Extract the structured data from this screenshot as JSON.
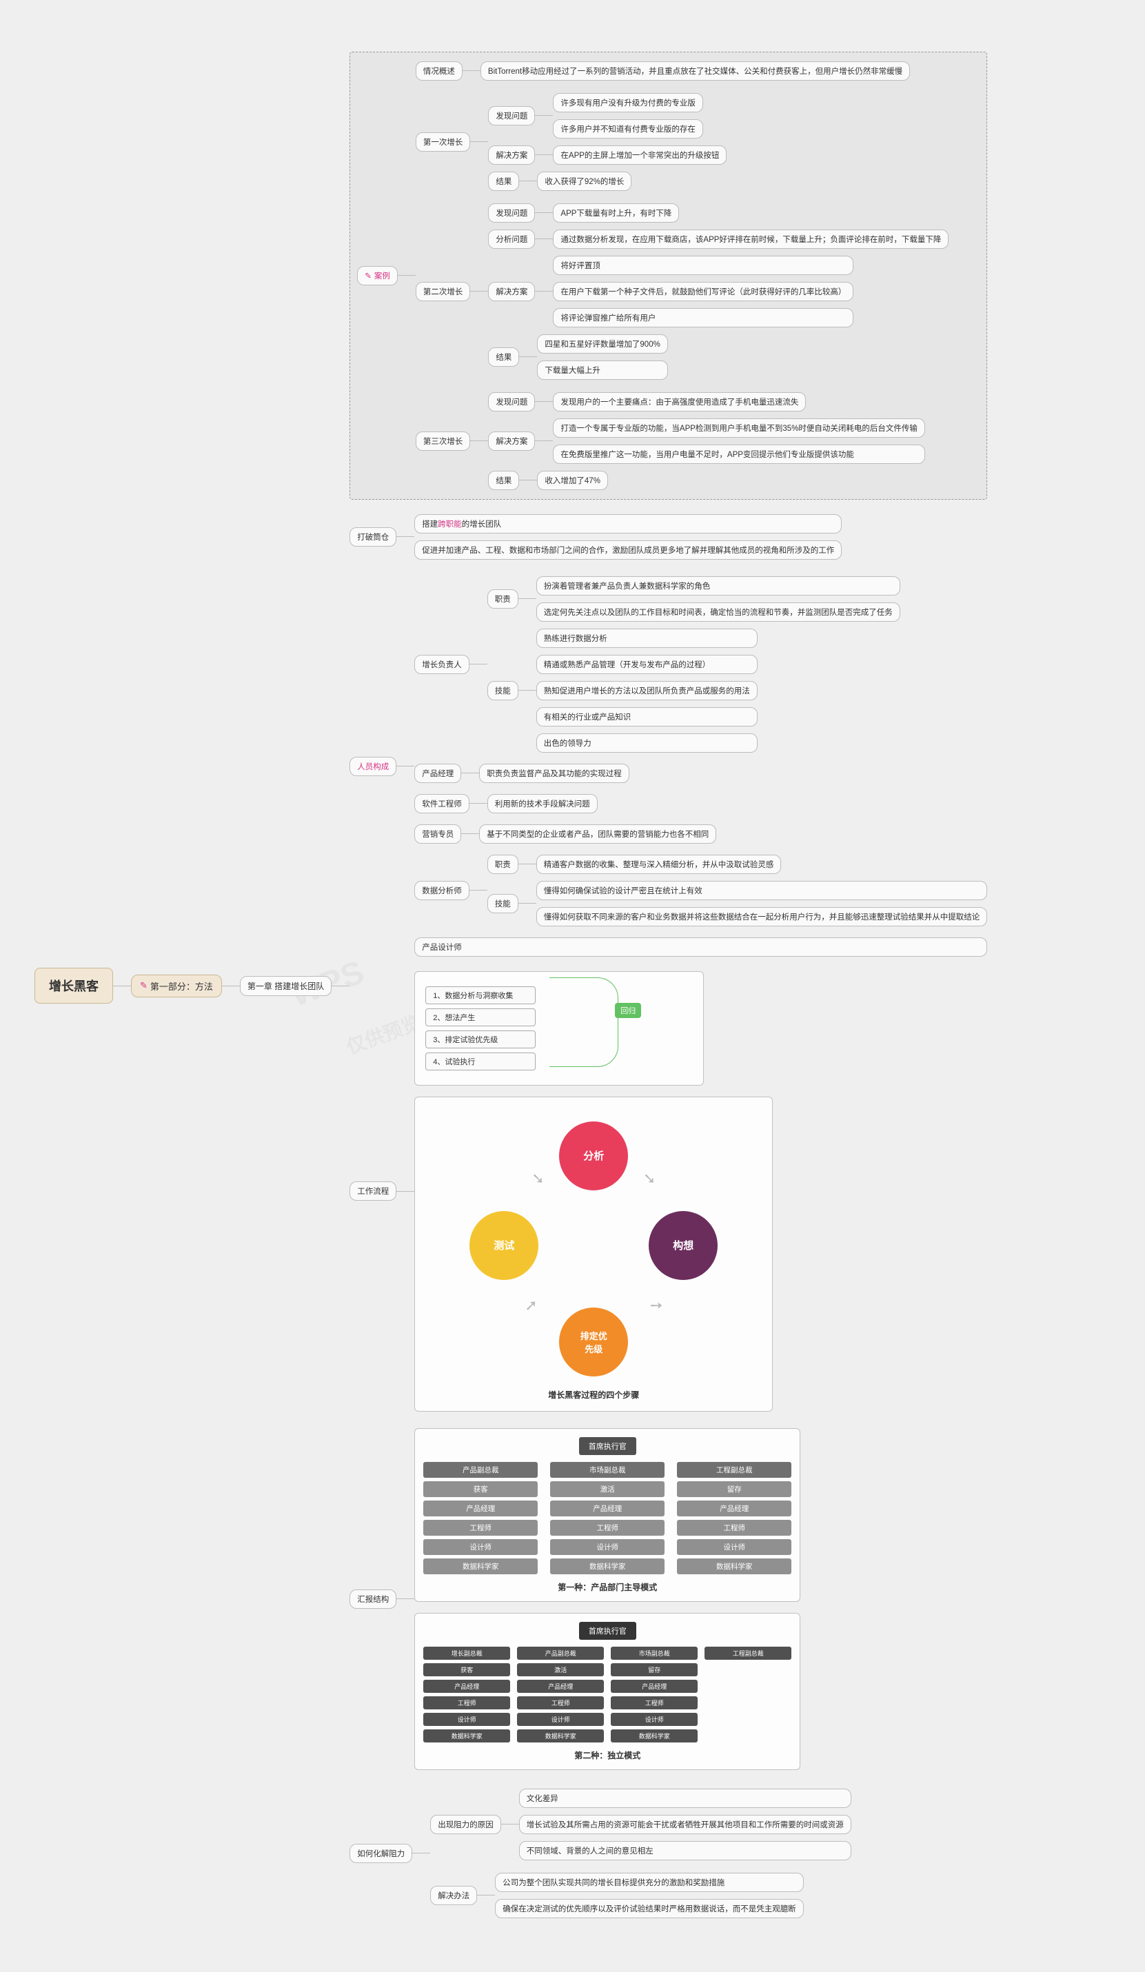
{
  "root": "增长黑客",
  "part1": "第一部分：方法",
  "pencil_icon": "✎",
  "chapter1": "第一章 搭建增长团队",
  "case": {
    "label": "案例",
    "overview_label": "情况概述",
    "overview_text": "BitTorrent移动应用经过了一系列的营销活动，并且重点放在了社交媒体、公关和付费获客上，但用户增长仍然非常缓慢",
    "g1": {
      "label": "第一次增长",
      "problem_label": "发现问题",
      "p1": "许多现有用户没有升级为付费的专业版",
      "p2": "许多用户并不知道有付费专业版的存在",
      "solution_label": "解决方案",
      "solution": "在APP的主屏上增加一个非常突出的升级按钮",
      "result_label": "结果",
      "result": "收入获得了92%的增长"
    },
    "g2": {
      "label": "第二次增长",
      "problem_label": "发现问题",
      "problem": "APP下载量有时上升，有时下降",
      "analyze_label": "分析问题",
      "analyze": "通过数据分析发现，在应用下载商店，该APP好评排在前时候，下载量上升；负面评论排在前时，下载量下降",
      "solution_label": "解决方案",
      "s1": "将好评置顶",
      "s2": "在用户下载第一个种子文件后，就鼓励他们写评论（此时获得好评的几率比较高）",
      "s3": "将评论弹窗推广给所有用户",
      "result_label": "结果",
      "r1": "四星和五星好评数量增加了900%",
      "r2": "下载量大幅上升"
    },
    "g3": {
      "label": "第三次增长",
      "problem_label": "发现问题",
      "problem": "发现用户的一个主要痛点：由于高强度使用造成了手机电量迅速流失",
      "solution_label": "解决方案",
      "s1": "打造一个专属于专业版的功能，当APP检测到用户手机电量不到35%时便自动关闭耗电的后台文件传输",
      "s2": "在免费版里推广这一功能，当用户电量不足时，APP变回提示他们专业版提供该功能",
      "result_label": "结果",
      "result": "收入增加了47%"
    }
  },
  "break_silo": {
    "label": "打破筒仓",
    "item1_pre": "搭建",
    "item1_hl": "跨职能",
    "item1_post": "的增长团队",
    "item2": "促进并加速产品、工程、数据和市场部门之间的合作，激励团队成员更多地了解并理解其他成员的视角和所涉及的工作"
  },
  "team": {
    "label": "人员构成",
    "lead": {
      "label": "增长负责人",
      "duty_label": "职责",
      "d1": "扮演着管理者兼产品负责人兼数据科学家的角色",
      "d2": "选定何先关注点以及团队的工作目标和时间表，确定恰当的流程和节奏，并监测团队是否完成了任务",
      "skill_label": "技能",
      "s1": "熟练进行数据分析",
      "s2": "精通或熟悉产品管理（开发与发布产品的过程）",
      "s3": "熟知促进用户增长的方法以及团队所负责产品或服务的用法",
      "s4": "有相关的行业或产品知识",
      "s5": "出色的领导力"
    },
    "pm": {
      "label": "产品经理",
      "desc": "职责负责监督产品及其功能的实现过程"
    },
    "eng": {
      "label": "软件工程师",
      "desc": "利用新的技术手段解决问题"
    },
    "mkt": {
      "label": "营销专员",
      "desc": "基于不同类型的企业或者产品，团队需要的营销能力也各不相同"
    },
    "data": {
      "label": "数据分析师",
      "duty_label": "职责",
      "duty": "精通客户数据的收集、整理与深入精细分析，并从中汲取试验灵感",
      "skill_label": "技能",
      "s1": "懂得如何确保试验的设计严密且在统计上有效",
      "s2": "懂得如何获取不同来源的客户和业务数据并将这些数据结合在一起分析用户行为，并且能够迅速整理试验结果并从中提取结论"
    },
    "pd": "产品设计师"
  },
  "workflow": {
    "label": "工作流程",
    "steps": [
      "1、数据分析与洞察收集",
      "2、想法产生",
      "3、排定试验优先级",
      "4、试验执行"
    ],
    "loop": "回归",
    "circles": {
      "top": "分析",
      "right": "构想",
      "bottom": "排定优\n先级",
      "left": "测试"
    },
    "caption": "增长黑客过程的四个步骤",
    "colors": {
      "top": "#e83e5c",
      "right": "#6b2d5c",
      "bottom": "#f28c28",
      "left": "#f4c430",
      "loop": "#62c162"
    }
  },
  "report": {
    "label": "汇报结构",
    "org1": {
      "top": "首席执行官",
      "cols": [
        {
          "head": "产品副总裁",
          "items": [
            "获客",
            "产品经理",
            "工程师",
            "设计师",
            "数据科学家"
          ]
        },
        {
          "head": "市场副总裁",
          "items": [
            "激活",
            "产品经理",
            "工程师",
            "设计师",
            "数据科学家"
          ]
        },
        {
          "head": "工程副总裁",
          "items": [
            "留存",
            "产品经理",
            "工程师",
            "设计师",
            "数据科学家"
          ]
        }
      ],
      "caption": "第一种：产品部门主导模式"
    },
    "org2": {
      "top": "首席执行官",
      "cols": [
        {
          "head": "增长副总裁",
          "items": [
            "获客",
            "产品经理",
            "工程师",
            "设计师",
            "数据科学家"
          ]
        },
        {
          "head": "产品副总裁",
          "items": [
            "激活",
            "产品经理",
            "工程师",
            "设计师",
            "数据科学家"
          ]
        },
        {
          "head": "市场副总裁",
          "items": [
            "留存",
            "产品经理",
            "工程师",
            "设计师",
            "数据科学家"
          ]
        },
        {
          "head": "工程副总裁",
          "items": [
            "",
            "",
            "",
            "",
            ""
          ]
        }
      ],
      "caption": "第二种：独立模式"
    }
  },
  "resistance": {
    "label": "如何化解阻力",
    "cause_label": "出现阻力的原因",
    "c1": "文化差异",
    "c2": "增长试验及其所需占用的资源可能会干扰或者牺牲开展其他项目和工作所需要的时间或资源",
    "c3": "不同领域、背景的人之间的意见相左",
    "solution_label": "解决办法",
    "s1": "公司为整个团队实现共同的增长目标提供充分的激励和奖励措施",
    "s2": "确保在决定测试的优先顺序以及评价试验结果时严格用数据说话，而不是凭主观臆断"
  }
}
